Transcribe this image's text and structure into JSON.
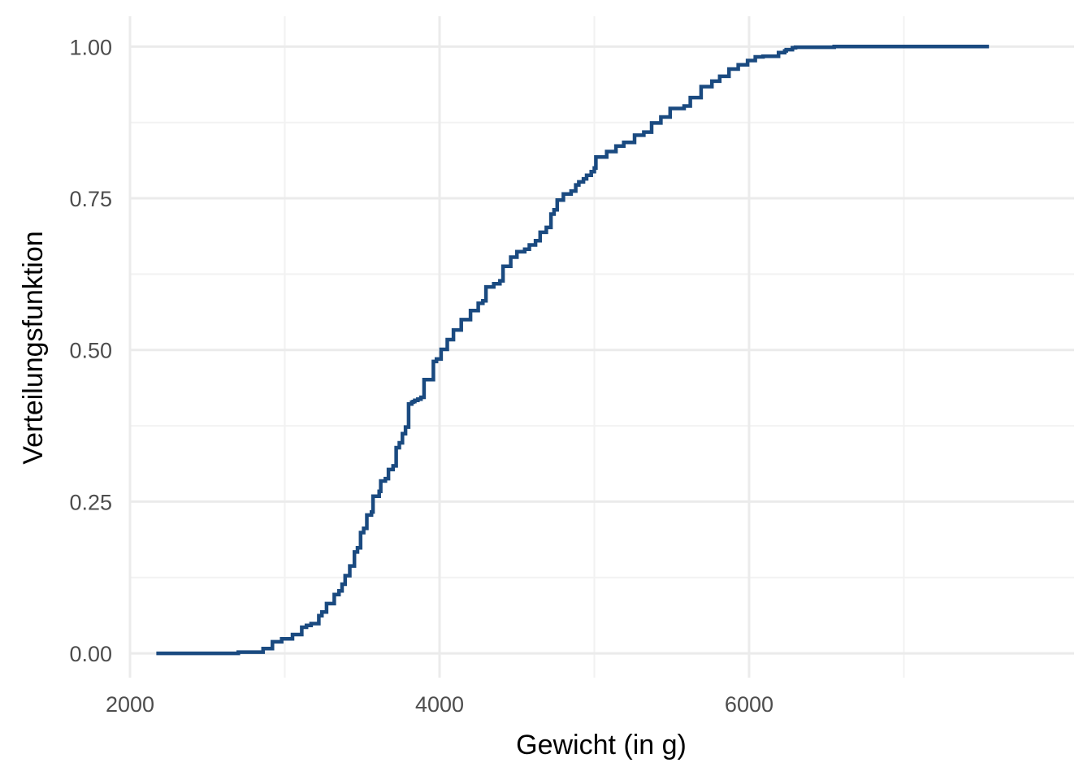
{
  "chart_data": {
    "type": "line",
    "subtype": "step",
    "title": "",
    "xlabel": "Gewicht (in g)",
    "ylabel": "Verteilungsfunktion",
    "xlim": [
      2000,
      8100
    ],
    "ylim": [
      -0.04,
      1.05
    ],
    "x_ticks": [
      2000,
      4000,
      6000
    ],
    "x_tick_labels": [
      "2000",
      "4000",
      "6000"
    ],
    "y_ticks": [
      0,
      0.25,
      0.5,
      0.75,
      1.0
    ],
    "y_tick_labels": [
      "0.00",
      "0.25",
      "0.50",
      "0.75",
      "1.00"
    ],
    "grid": true,
    "line_color": "#1a4a80",
    "series": [
      {
        "points": [
          [
            2170,
            0.0
          ],
          [
            2700,
            0.002
          ],
          [
            2860,
            0.008
          ],
          [
            2920,
            0.019
          ],
          [
            2980,
            0.024
          ],
          [
            3050,
            0.031
          ],
          [
            3110,
            0.043
          ],
          [
            3140,
            0.046
          ],
          [
            3170,
            0.049
          ],
          [
            3220,
            0.062
          ],
          [
            3240,
            0.068
          ],
          [
            3270,
            0.082
          ],
          [
            3320,
            0.097
          ],
          [
            3350,
            0.103
          ],
          [
            3370,
            0.114
          ],
          [
            3390,
            0.128
          ],
          [
            3420,
            0.144
          ],
          [
            3450,
            0.167
          ],
          [
            3470,
            0.174
          ],
          [
            3490,
            0.199
          ],
          [
            3510,
            0.206
          ],
          [
            3530,
            0.228
          ],
          [
            3560,
            0.233
          ],
          [
            3570,
            0.259
          ],
          [
            3610,
            0.267
          ],
          [
            3620,
            0.284
          ],
          [
            3650,
            0.288
          ],
          [
            3670,
            0.303
          ],
          [
            3700,
            0.309
          ],
          [
            3720,
            0.339
          ],
          [
            3740,
            0.347
          ],
          [
            3760,
            0.362
          ],
          [
            3780,
            0.373
          ],
          [
            3800,
            0.411
          ],
          [
            3820,
            0.414
          ],
          [
            3830,
            0.415
          ],
          [
            3840,
            0.417
          ],
          [
            3860,
            0.419
          ],
          [
            3880,
            0.422
          ],
          [
            3900,
            0.451
          ],
          [
            3960,
            0.481
          ],
          [
            3980,
            0.485
          ],
          [
            4010,
            0.501
          ],
          [
            4050,
            0.517
          ],
          [
            4090,
            0.533
          ],
          [
            4140,
            0.55
          ],
          [
            4200,
            0.565
          ],
          [
            4250,
            0.577
          ],
          [
            4280,
            0.581
          ],
          [
            4300,
            0.604
          ],
          [
            4350,
            0.609
          ],
          [
            4390,
            0.614
          ],
          [
            4410,
            0.638
          ],
          [
            4460,
            0.653
          ],
          [
            4500,
            0.662
          ],
          [
            4550,
            0.666
          ],
          [
            4580,
            0.673
          ],
          [
            4620,
            0.68
          ],
          [
            4650,
            0.694
          ],
          [
            4690,
            0.702
          ],
          [
            4720,
            0.724
          ],
          [
            4740,
            0.731
          ],
          [
            4760,
            0.747
          ],
          [
            4800,
            0.757
          ],
          [
            4850,
            0.762
          ],
          [
            4880,
            0.772
          ],
          [
            4900,
            0.777
          ],
          [
            4930,
            0.782
          ],
          [
            4950,
            0.788
          ],
          [
            4980,
            0.794
          ],
          [
            5000,
            0.8
          ],
          [
            5010,
            0.818
          ],
          [
            5080,
            0.827
          ],
          [
            5140,
            0.836
          ],
          [
            5190,
            0.842
          ],
          [
            5260,
            0.854
          ],
          [
            5320,
            0.859
          ],
          [
            5370,
            0.874
          ],
          [
            5430,
            0.884
          ],
          [
            5490,
            0.898
          ],
          [
            5580,
            0.902
          ],
          [
            5620,
            0.916
          ],
          [
            5690,
            0.934
          ],
          [
            5760,
            0.943
          ],
          [
            5810,
            0.951
          ],
          [
            5870,
            0.963
          ],
          [
            5930,
            0.97
          ],
          [
            5990,
            0.977
          ],
          [
            6040,
            0.983
          ],
          [
            6090,
            0.984
          ],
          [
            6190,
            0.99
          ],
          [
            6230,
            0.993
          ],
          [
            6240,
            0.995
          ],
          [
            6280,
            0.998
          ],
          [
            6300,
            0.999
          ],
          [
            6550,
            1.0
          ],
          [
            7550,
            1.0
          ]
        ]
      }
    ]
  }
}
